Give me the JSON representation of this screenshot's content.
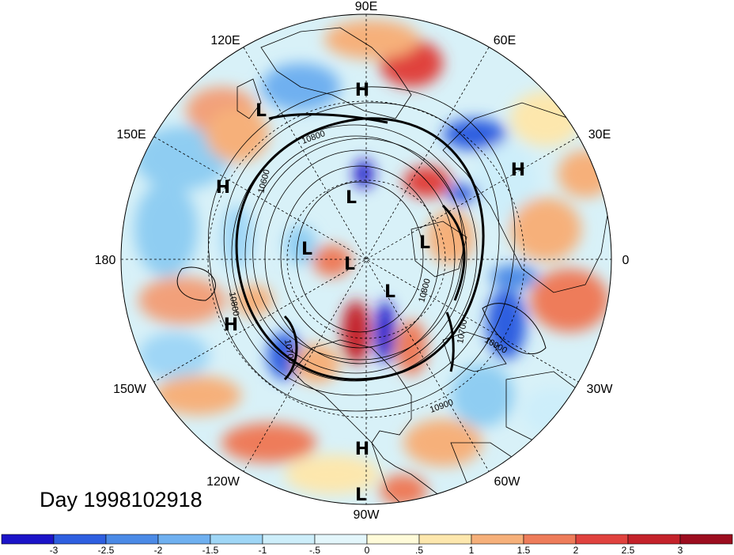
{
  "title": "Day 1998102918",
  "longitude_labels": {
    "lon_90E": "90E",
    "lon_60E": "60E",
    "lon_30E": "30E",
    "lon_0": "0",
    "lon_30W": "30W",
    "lon_60W": "60W",
    "lon_90W": "90W",
    "lon_120W": "120W",
    "lon_150W": "150W",
    "lon_180": "180",
    "lon_150E": "150E",
    "lon_120E": "120E"
  },
  "pressure_centers": {
    "h1": "H",
    "h2": "H",
    "h3": "H",
    "h4": "H",
    "h5": "H",
    "l1": "L",
    "l2": "L",
    "l3": "L",
    "l4": "L",
    "l5": "L",
    "l6": "L",
    "l7": "L"
  },
  "contour_labels": {
    "c1": "10800",
    "c2": "10600",
    "c3": "10800",
    "c4": "10700",
    "c5": "10900",
    "c6": "10900",
    "c7": "10800",
    "c8": "10700"
  },
  "colorbar": {
    "ticks": [
      "-3",
      "-2.5",
      "-2",
      "-1.5",
      "-1",
      "-.5",
      "0",
      ".5",
      "1",
      "1.5",
      "2",
      "2.5",
      "3"
    ],
    "colors": [
      "#1c14c8",
      "#2e5fe0",
      "#4b8ae6",
      "#6fb0f0",
      "#9fd6f6",
      "#cdeefa",
      "#e3f6fb",
      "#fffbd9",
      "#fde7ad",
      "#f6b07a",
      "#ee7c5a",
      "#e0423e",
      "#c4222a",
      "#9c0d1f"
    ]
  }
}
